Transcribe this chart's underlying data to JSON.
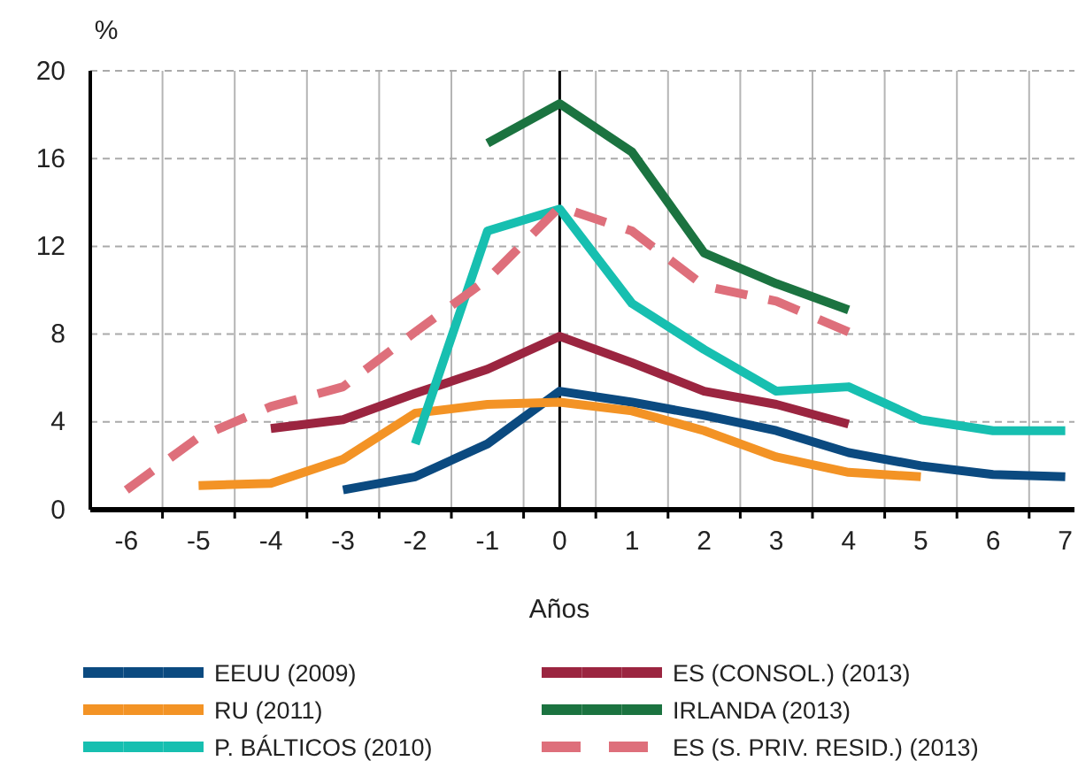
{
  "chart_data": {
    "type": "line",
    "ylabel": "%",
    "xlabel": "Años",
    "categories": [
      "-6",
      "-5",
      "-4",
      "-3",
      "-2",
      "-1",
      "0",
      "1",
      "2",
      "3",
      "4",
      "5",
      "6",
      "7"
    ],
    "ylim": [
      0,
      20
    ],
    "yticks": [
      0,
      4,
      8,
      12,
      16,
      20
    ],
    "grid": true,
    "legend": "bottom",
    "line_style": "solid",
    "ref_lines": [
      {
        "axis": "x",
        "value": "0",
        "color": "#000000"
      }
    ],
    "series": [
      {
        "name": "EEUU (2009)",
        "color": "#0b4a80",
        "values": [
          null,
          null,
          null,
          0.9,
          1.5,
          3.0,
          5.4,
          4.9,
          4.3,
          3.6,
          2.6,
          2.0,
          1.6,
          1.5
        ]
      },
      {
        "name": "ES (CONSOL.) (2013)",
        "color": "#9b2540",
        "values": [
          null,
          null,
          3.7,
          4.1,
          5.3,
          6.4,
          7.9,
          6.7,
          5.4,
          4.8,
          3.9,
          null,
          null,
          null
        ]
      },
      {
        "name": "RU (2011)",
        "color": "#f39325",
        "values": [
          null,
          1.1,
          1.2,
          2.3,
          4.4,
          4.8,
          4.9,
          4.5,
          3.6,
          2.4,
          1.7,
          1.5,
          null,
          null
        ]
      },
      {
        "name": "IRLANDA (2013)",
        "color": "#1b7340",
        "values": [
          null,
          null,
          null,
          null,
          null,
          16.7,
          18.5,
          16.3,
          11.7,
          10.3,
          9.1,
          null,
          null,
          null
        ]
      },
      {
        "name": "P. BÁLTICOS (2010)",
        "color": "#17bfb0",
        "values": [
          null,
          null,
          null,
          null,
          3.0,
          12.7,
          13.7,
          9.4,
          7.3,
          5.4,
          5.6,
          4.1,
          3.6,
          3.6
        ]
      },
      {
        "name": "ES (S. PRIV. RESID.) (2013)",
        "color": "#de6f7b",
        "line_style": "dashed",
        "values": [
          0.9,
          3.3,
          4.7,
          5.6,
          8.1,
          10.5,
          13.8,
          12.7,
          10.2,
          9.5,
          8.1,
          null,
          null,
          null
        ]
      }
    ]
  }
}
